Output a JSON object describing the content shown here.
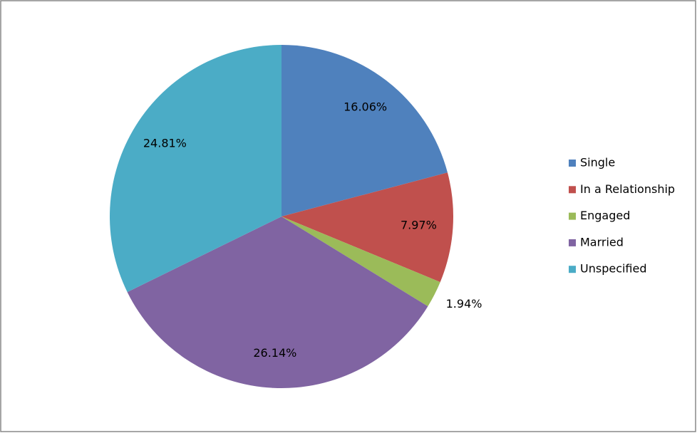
{
  "chart_data": {
    "type": "pie",
    "categories": [
      "Single",
      "In a Relationship",
      "Engaged",
      "Married",
      "Unspecified"
    ],
    "values": [
      16.06,
      7.97,
      1.94,
      26.14,
      24.81
    ],
    "value_labels": [
      "16.06%",
      "7.97%",
      "1.94%",
      "26.14%",
      "24.81%"
    ],
    "colors": [
      "#4f81bd",
      "#c0504d",
      "#9bbb59",
      "#8064a2",
      "#4bacc6"
    ],
    "legend": "right"
  }
}
